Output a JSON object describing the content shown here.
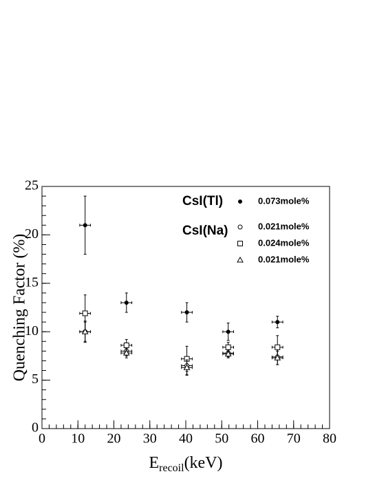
{
  "chart_data": {
    "type": "scatter",
    "xlabel": {
      "main": "E",
      "sub": "recoil",
      "unit": "(keV)"
    },
    "ylabel": "Quenching Factor (%)",
    "xlim": [
      0,
      80
    ],
    "xticks": [
      0,
      10,
      20,
      30,
      40,
      50,
      60,
      70,
      80
    ],
    "xminor_step": 2,
    "ylim": [
      0,
      25
    ],
    "yticks": [
      0,
      5,
      10,
      15,
      20,
      25
    ],
    "yminor_step": 1,
    "groups": [
      {
        "label": "CsI(Tl)",
        "series": [
          {
            "name": "0.073mole%",
            "marker": "circle-filled",
            "color": "#000000",
            "x": [
              12,
              23.5,
              40.3,
              51.8,
              65.5
            ],
            "x_errors": [
              1.5,
              1.5,
              1.5,
              1.5,
              1.5
            ],
            "values": [
              21,
              13,
              12,
              10,
              11
            ],
            "errors": [
              3,
              1,
              1,
              0.9,
              0.6
            ]
          }
        ]
      },
      {
        "label": "CsI(Na)",
        "series": [
          {
            "name": "0.021mole%",
            "marker": "circle",
            "color": "#000000",
            "x": [
              12,
              23.5,
              40.3,
              51.8,
              65.5
            ],
            "x_errors": [
              1.5,
              1.5,
              1.5,
              1.5,
              1.5
            ],
            "values": [
              10,
              8,
              6.5,
              7.8,
              7.4
            ],
            "errors": [
              1.1,
              0.5,
              0.9,
              0.4,
              0.8
            ]
          },
          {
            "name": "0.024mole%",
            "marker": "square",
            "color": "#000000",
            "x": [
              12,
              23.5,
              40.3,
              51.8,
              65.5
            ],
            "x_errors": [
              1.5,
              1.5,
              1.5,
              1.5,
              1.5
            ],
            "values": [
              11.9,
              8.6,
              7.2,
              8.4,
              8.4
            ],
            "errors": [
              1.9,
              0.6,
              1.3,
              0.5,
              1.2
            ]
          },
          {
            "name": "0.021mole%",
            "marker": "triangle",
            "color": "#000000",
            "x": [
              12,
              23.5,
              40.3,
              51.8,
              65.5
            ],
            "x_errors": [
              1.5,
              1.5,
              1.5,
              1.5,
              1.5
            ],
            "values": [
              10,
              7.8,
              6.3,
              7.7,
              7.3
            ],
            "errors": [
              1,
              0.5,
              0.8,
              0.4,
              0.7
            ]
          }
        ]
      }
    ]
  }
}
